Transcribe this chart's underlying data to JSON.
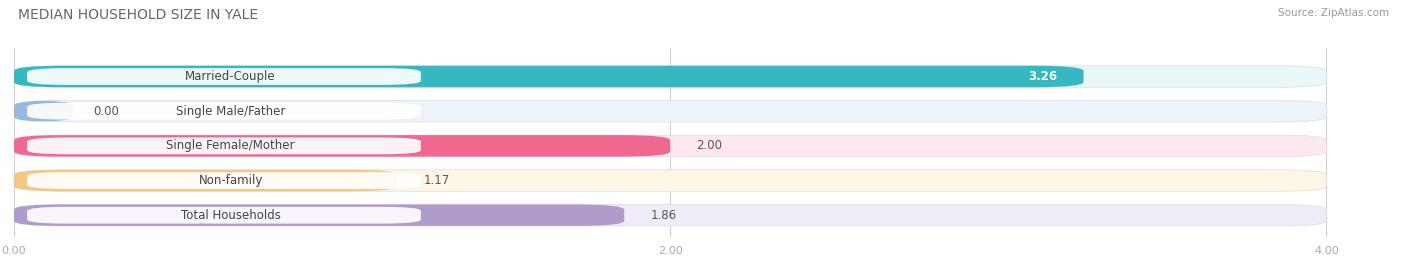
{
  "title": "MEDIAN HOUSEHOLD SIZE IN YALE",
  "source": "Source: ZipAtlas.com",
  "categories": [
    "Married-Couple",
    "Single Male/Father",
    "Single Female/Mother",
    "Non-family",
    "Total Households"
  ],
  "values": [
    3.26,
    0.0,
    2.0,
    1.17,
    1.86
  ],
  "bar_colors": [
    "#35b8c0",
    "#98b8e0",
    "#f06890",
    "#f5c882",
    "#b09ccc"
  ],
  "bar_bg_colors": [
    "#e8f7f8",
    "#edf3f8",
    "#fce8ee",
    "#fdf5e6",
    "#f0ecf7"
  ],
  "xlim": [
    0,
    4.2
  ],
  "xticks": [
    0.0,
    2.0,
    4.0
  ],
  "xtick_labels": [
    "0.00",
    "2.00",
    "4.00"
  ],
  "label_fontsize": 8.5,
  "value_fontsize": 8.5,
  "title_fontsize": 10,
  "background_color": "#ffffff",
  "bar_bg_track_color": "#eeeeee"
}
